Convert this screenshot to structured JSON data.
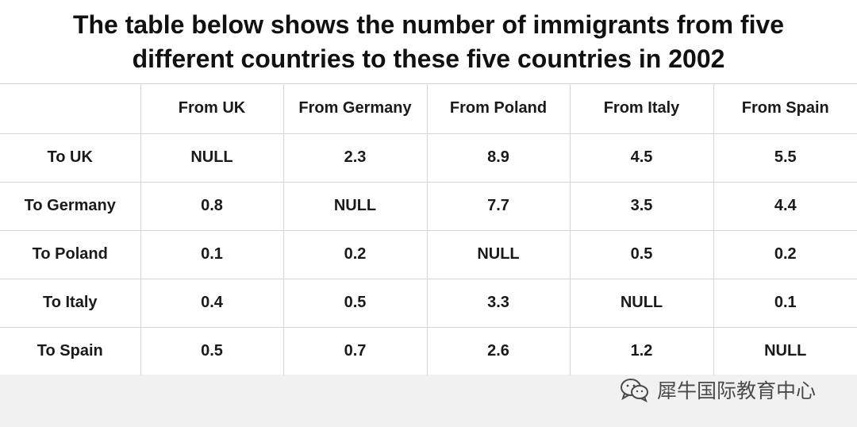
{
  "chart_data": {
    "type": "table",
    "title_lines": [
      "The table below shows the number of immigrants from five",
      "different countries to these five countries in 2002"
    ],
    "corner": "",
    "columns": [
      "From UK",
      "From Germany",
      "From Poland",
      "From Italy",
      "From Spain"
    ],
    "rows": [
      {
        "label": "To UK",
        "values": [
          "NULL",
          "2.3",
          "8.9",
          "4.5",
          "5.5"
        ]
      },
      {
        "label": "To Germany",
        "values": [
          "0.8",
          "NULL",
          "7.7",
          "3.5",
          "4.4"
        ]
      },
      {
        "label": "To Poland",
        "values": [
          "0.1",
          "0.2",
          "NULL",
          "0.5",
          "0.2"
        ]
      },
      {
        "label": "To Italy",
        "values": [
          "0.4",
          "0.5",
          "3.3",
          "NULL",
          "0.1"
        ]
      },
      {
        "label": "To Spain",
        "values": [
          "0.5",
          "0.7",
          "2.6",
          "1.2",
          "NULL"
        ]
      }
    ]
  },
  "watermark": {
    "icon": "wechat-icon",
    "text": "犀牛国际教育中心"
  }
}
